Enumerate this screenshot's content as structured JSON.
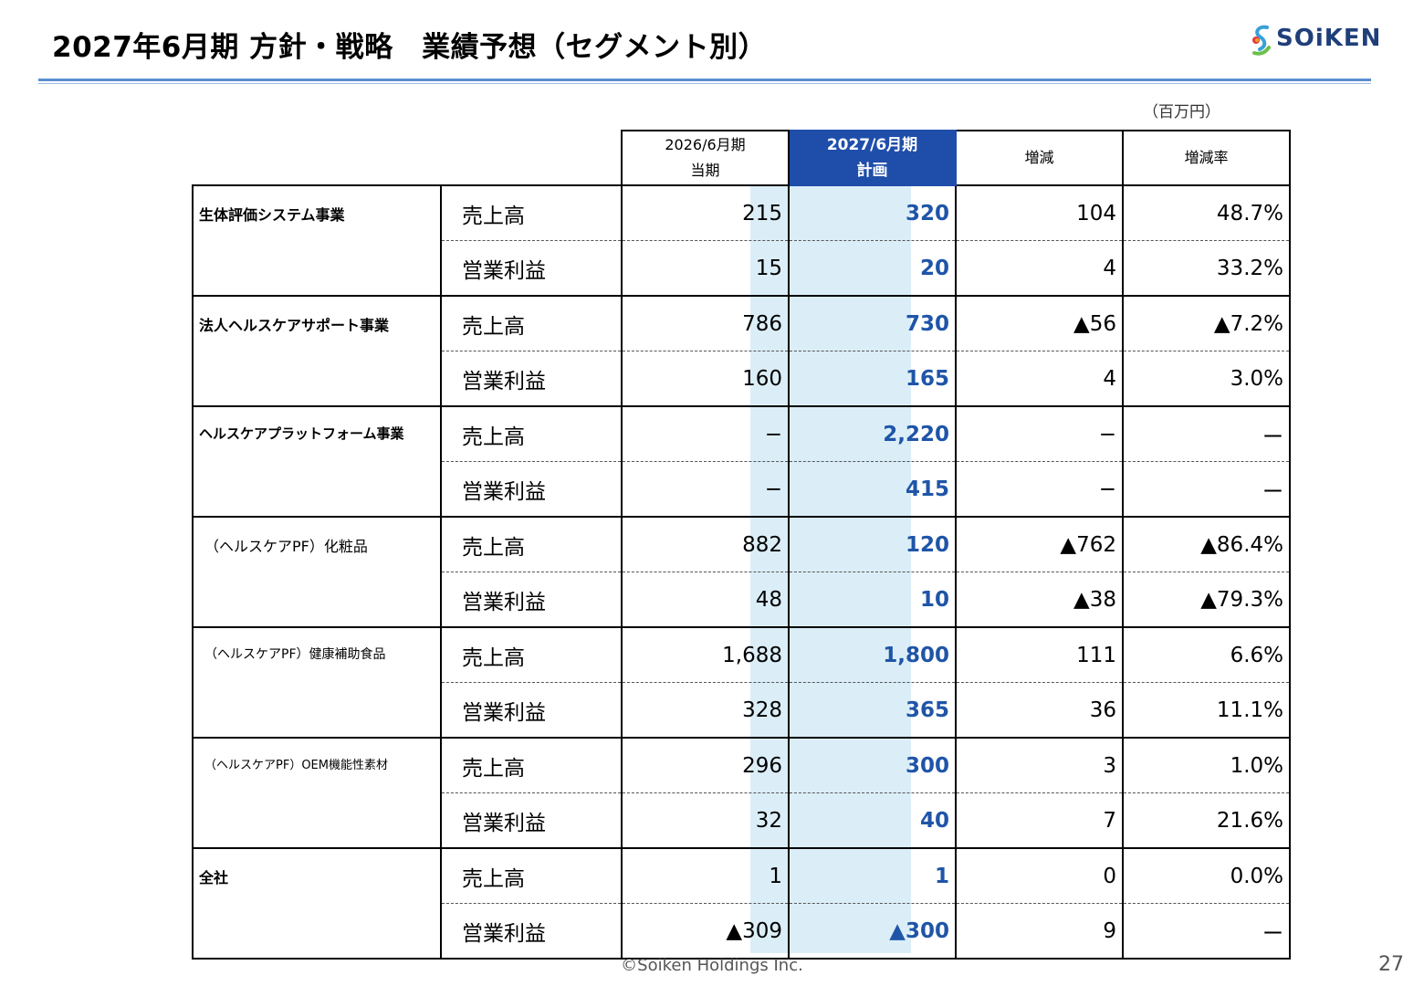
{
  "title": "2027年6月期 方針・戦略　業績予想（セグメント別）",
  "logo": {
    "text": "SOiKEN",
    "brand_color": "#1f3f7a",
    "accent_colors": [
      "#3aa0d8",
      "#e23b3b",
      "#f0a020",
      "#6cc04a"
    ]
  },
  "unit": "（百万円）",
  "headers": {
    "prev_line1": "2026/6月期",
    "prev_line2": "当期",
    "plan_line1": "2027/6月期",
    "plan_line2": "計画",
    "change": "増減",
    "rate": "増減率"
  },
  "segments": [
    {
      "name": "生体評価システム事業",
      "rows": [
        {
          "item": "売上高",
          "prev": "215",
          "plan": "320",
          "change": "104",
          "rate": "48.7%"
        },
        {
          "item": "営業利益",
          "prev": "15",
          "plan": "20",
          "change": "4",
          "rate": "33.2%"
        }
      ]
    },
    {
      "name": "法人ヘルスケアサポート事業",
      "rows": [
        {
          "item": "売上高",
          "prev": "786",
          "plan": "730",
          "change": "▲56",
          "rate": "▲7.2%"
        },
        {
          "item": "営業利益",
          "prev": "160",
          "plan": "165",
          "change": "4",
          "rate": "3.0%"
        }
      ]
    },
    {
      "name": "ヘルスケアプラットフォーム事業",
      "rows": [
        {
          "item": "売上高",
          "prev": "−",
          "plan": "2,220",
          "change": "−",
          "rate": "ー"
        },
        {
          "item": "営業利益",
          "prev": "−",
          "plan": "415",
          "change": "−",
          "rate": "ー"
        }
      ]
    },
    {
      "name": "（ヘルスケアPF）化粧品",
      "rows": [
        {
          "item": "売上高",
          "prev": "882",
          "plan": "120",
          "change": "▲762",
          "rate": "▲86.4%"
        },
        {
          "item": "営業利益",
          "prev": "48",
          "plan": "10",
          "change": "▲38",
          "rate": "▲79.3%"
        }
      ]
    },
    {
      "name": "（ヘルスケアPF）健康補助食品",
      "rows": [
        {
          "item": "売上高",
          "prev": "1,688",
          "plan": "1,800",
          "change": "111",
          "rate": "6.6%"
        },
        {
          "item": "営業利益",
          "prev": "328",
          "plan": "365",
          "change": "36",
          "rate": "11.1%"
        }
      ]
    },
    {
      "name": "（ヘルスケアPF）OEM機能性素材",
      "rows": [
        {
          "item": "売上高",
          "prev": "296",
          "plan": "300",
          "change": "3",
          "rate": "1.0%"
        },
        {
          "item": "営業利益",
          "prev": "32",
          "plan": "40",
          "change": "7",
          "rate": "21.6%"
        }
      ]
    },
    {
      "name": "全社",
      "rows": [
        {
          "item": "売上高",
          "prev": "1",
          "plan": "1",
          "change": "0",
          "rate": "0.0%"
        },
        {
          "item": "営業利益",
          "prev": "▲309",
          "plan": "▲300",
          "change": "9",
          "rate": "ー"
        }
      ]
    }
  ],
  "footer": "©Soiken Holdings Inc.",
  "page_number": "27",
  "colors": {
    "plan_header_bg": "#1f4eaa",
    "plan_column_bg": "#dbeef8",
    "plan_value_text": "#1f55a8",
    "rule": "#5b8fd0"
  }
}
